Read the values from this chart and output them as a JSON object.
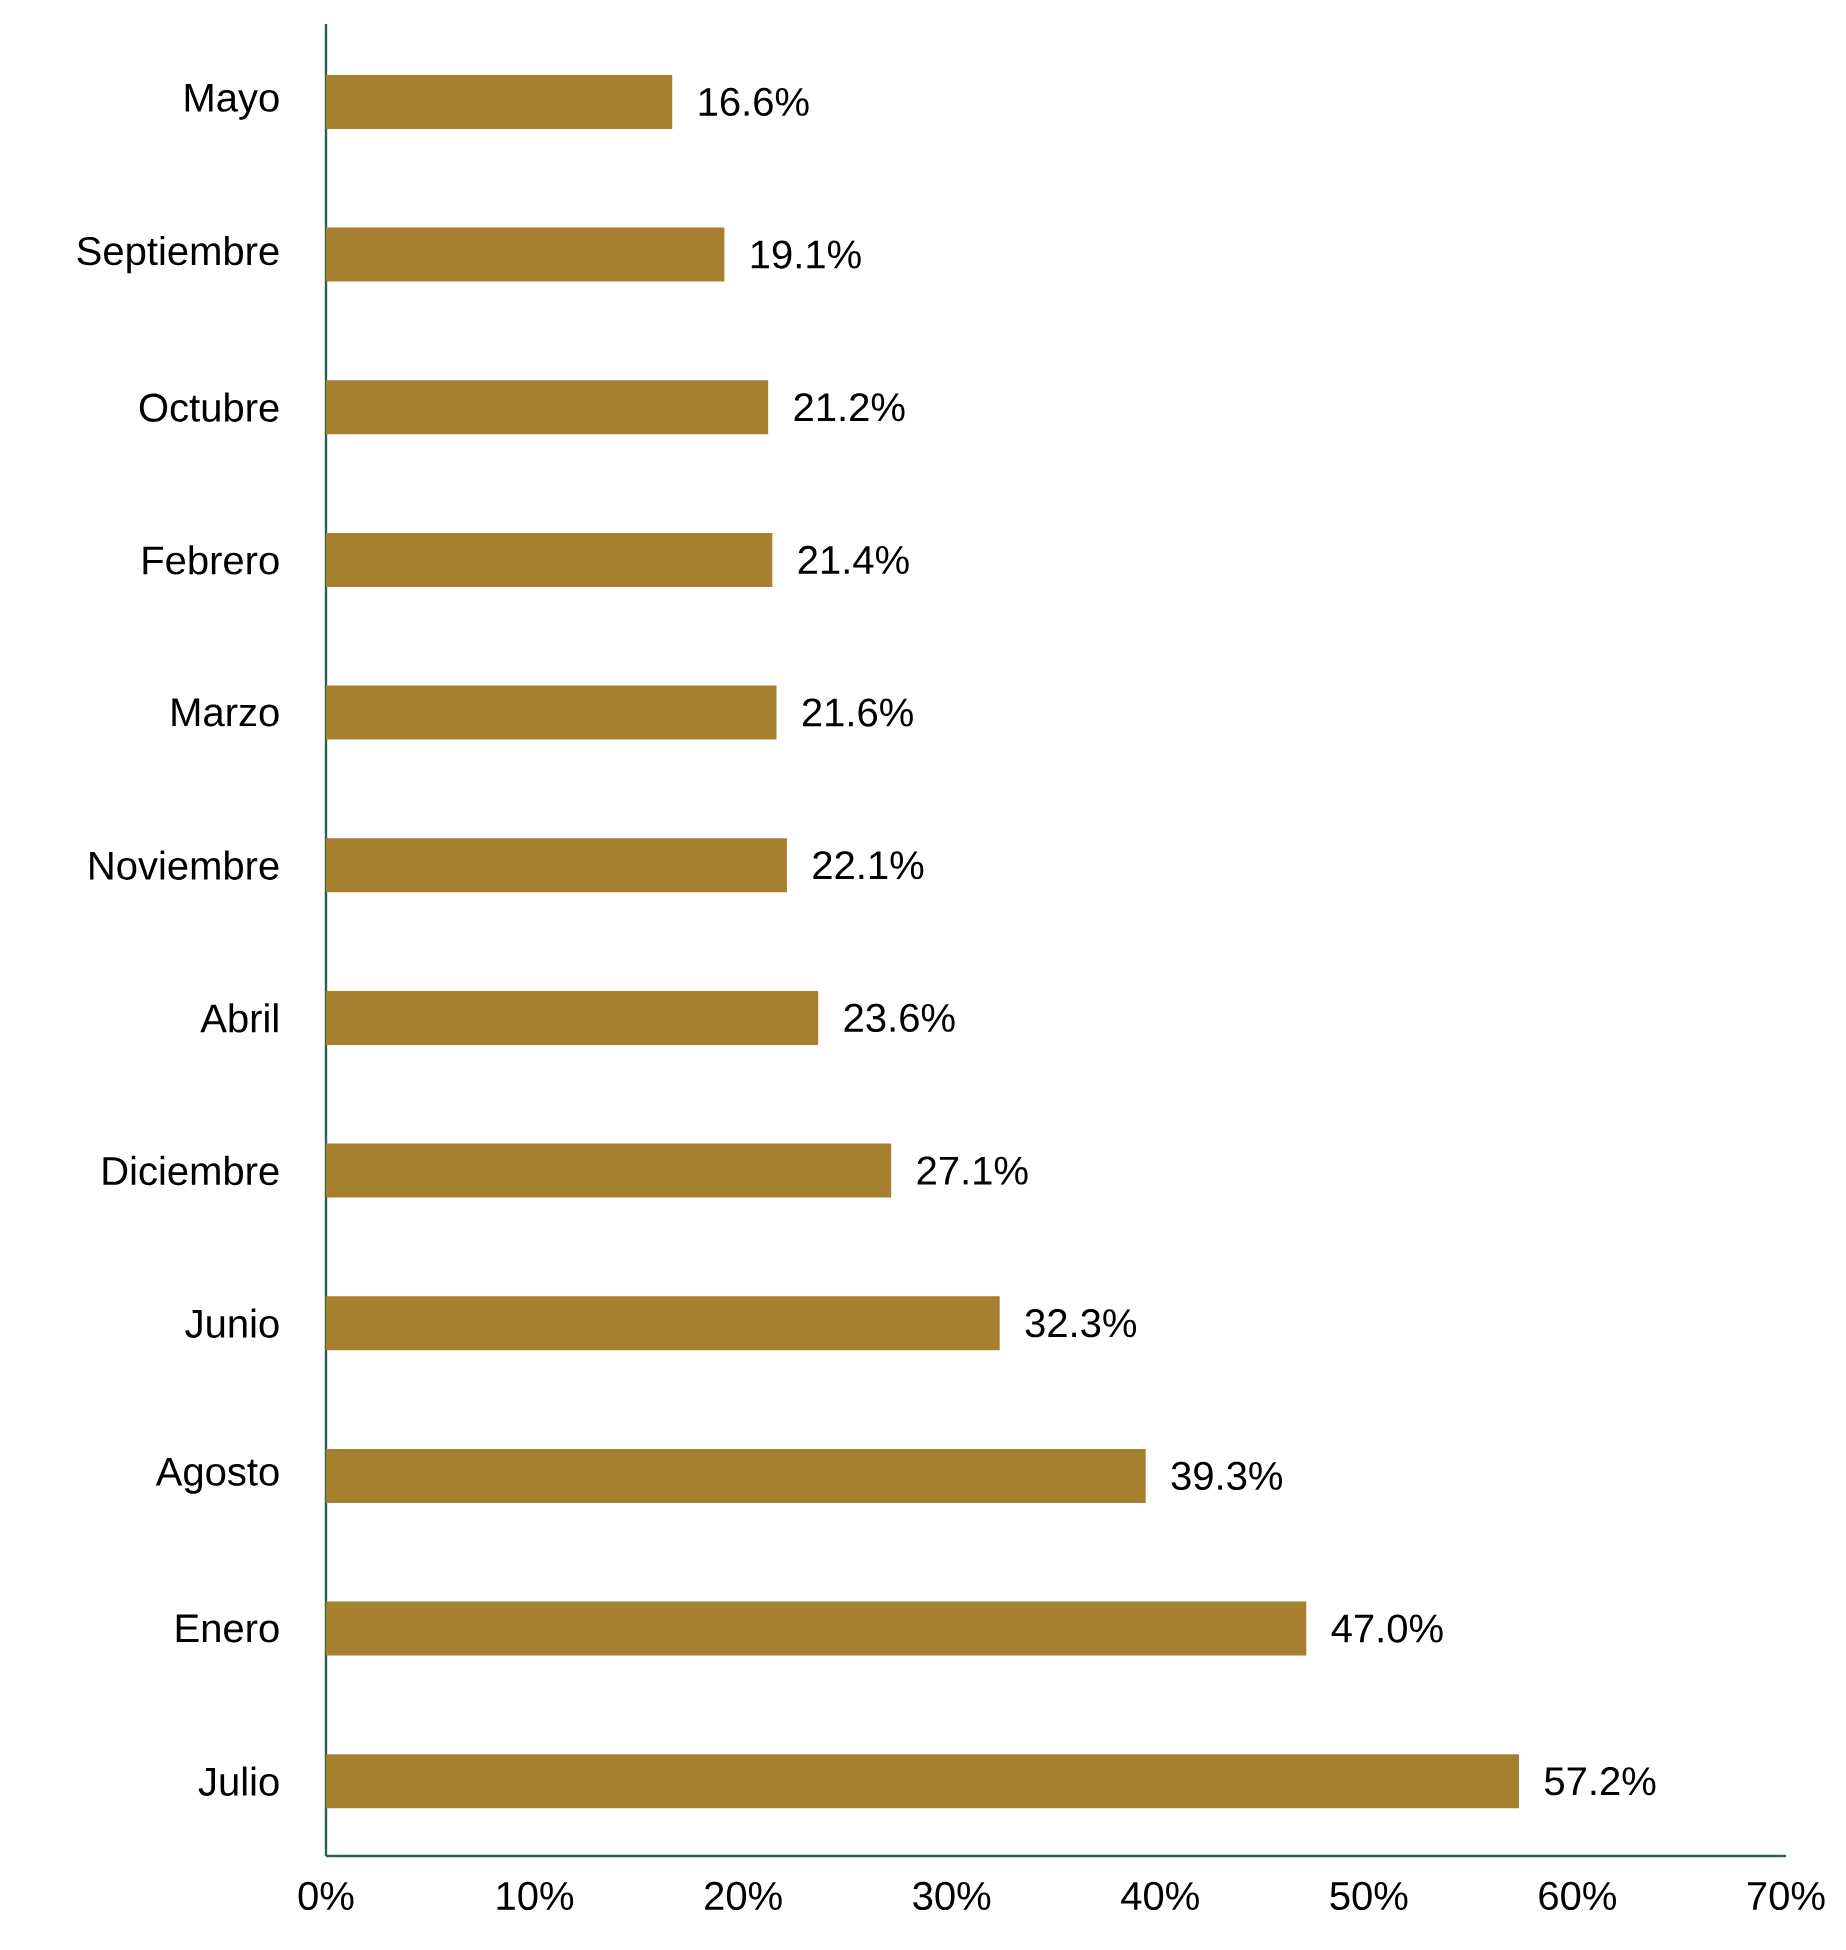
{
  "chart_data": {
    "type": "bar",
    "orientation": "horizontal",
    "categories": [
      "Mayo",
      "Septiembre",
      "Octubre",
      "Febrero",
      "Marzo",
      "Noviembre",
      "Abril",
      "Diciembre",
      "Junio",
      "Agosto",
      "Enero",
      "Julio"
    ],
    "values": [
      16.6,
      19.1,
      21.2,
      21.4,
      21.6,
      22.1,
      23.6,
      27.1,
      32.3,
      39.3,
      47.0,
      57.2
    ],
    "value_labels": [
      "16.6%",
      "19.1%",
      "21.2%",
      "21.4%",
      "21.6%",
      "22.1%",
      "23.6%",
      "27.1%",
      "32.3%",
      "39.3%",
      "47.0%",
      "57.2%"
    ],
    "color": "#a67f2f",
    "xlim": [
      0,
      70
    ],
    "xticks": [
      {
        "value": 0,
        "label": "0%"
      },
      {
        "value": 10,
        "label": "10%"
      },
      {
        "value": 20,
        "label": "20%"
      },
      {
        "value": 30,
        "label": "30%"
      },
      {
        "value": 40,
        "label": "40%"
      },
      {
        "value": 50,
        "label": "50%"
      },
      {
        "value": 60,
        "label": "60%"
      },
      {
        "value": 70,
        "label": "70%"
      }
    ],
    "grid": false
  }
}
